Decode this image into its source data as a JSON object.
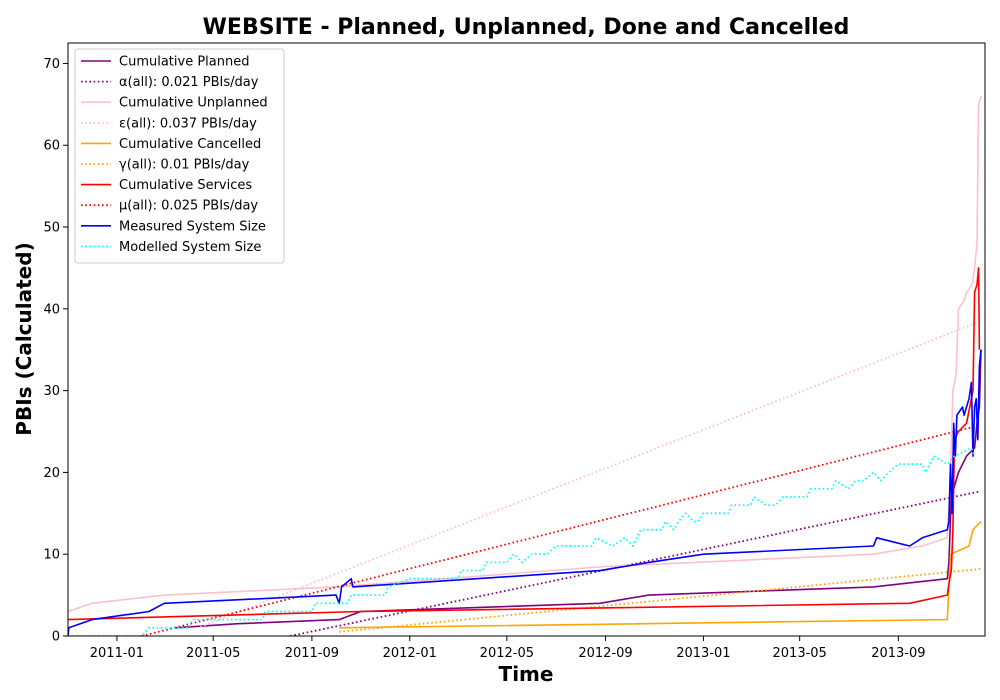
{
  "chart_data": {
    "type": "line",
    "title": "WEBSITE - Planned, Unplanned, Done  and Cancelled",
    "xlabel": "Time",
    "ylabel": "PBIs (Calculated)",
    "xlim": [
      "2010-11-01",
      "2013-12-18"
    ],
    "ylim": [
      0,
      72.5
    ],
    "xticks": [
      "2011-01",
      "2011-05",
      "2011-09",
      "2012-01",
      "2012-05",
      "2012-09",
      "2013-01",
      "2013-05",
      "2013-09"
    ],
    "yticks": [
      0,
      10,
      20,
      30,
      40,
      50,
      60,
      70
    ],
    "grid": false,
    "legend_position": "top-left",
    "series": [
      {
        "name": "Cumulative Planned",
        "color": "#800080",
        "style": "solid",
        "points": [
          [
            "2011-03-15",
            1
          ],
          [
            "2011-06-01",
            1.5
          ],
          [
            "2011-10-05",
            2
          ],
          [
            "2011-11-01",
            3
          ],
          [
            "2012-08-25",
            4
          ],
          [
            "2012-10-25",
            5
          ],
          [
            "2013-08-01",
            6
          ],
          [
            "2013-11-01",
            7
          ],
          [
            "2013-11-03",
            9
          ],
          [
            "2013-11-06",
            17
          ],
          [
            "2013-11-15",
            20
          ],
          [
            "2013-11-25",
            22
          ],
          [
            "2013-12-05",
            23
          ],
          [
            "2013-12-08",
            26
          ],
          [
            "2013-12-11",
            28
          ],
          [
            "2013-12-13",
            35
          ]
        ]
      },
      {
        "name": "α(all): 0.021 PBIs/day",
        "color": "#800080",
        "style": "dotted",
        "points": [
          [
            "2011-08-05",
            0
          ],
          [
            "2013-12-13",
            17.7
          ]
        ]
      },
      {
        "name": "Cumulative Unplanned",
        "color": "#ffc0cb",
        "style": "solid",
        "points": [
          [
            "2010-11-01",
            3
          ],
          [
            "2010-12-01",
            4
          ],
          [
            "2011-03-01",
            5
          ],
          [
            "2011-10-01",
            6
          ],
          [
            "2012-09-01",
            8.5
          ],
          [
            "2013-08-01",
            10
          ],
          [
            "2013-10-01",
            11
          ],
          [
            "2013-11-01",
            12
          ],
          [
            "2013-11-05",
            20
          ],
          [
            "2013-11-08",
            30
          ],
          [
            "2013-11-12",
            32
          ],
          [
            "2013-11-15",
            40
          ],
          [
            "2013-11-22",
            41
          ],
          [
            "2013-11-25",
            42
          ],
          [
            "2013-12-02",
            43
          ],
          [
            "2013-12-05",
            45
          ],
          [
            "2013-12-08",
            48
          ],
          [
            "2013-12-10",
            65
          ],
          [
            "2013-12-13",
            66
          ]
        ]
      },
      {
        "name": "ε(all): 0.037 PBIs/day",
        "color": "#ffc0cb",
        "style": "dotted",
        "points": [
          [
            "2011-04-15",
            1.1
          ],
          [
            "2013-12-13",
            38.5
          ]
        ]
      },
      {
        "name": "Cumulative Cancelled",
        "color": "#ffa500",
        "style": "solid",
        "points": [
          [
            "2011-10-05",
            1
          ],
          [
            "2013-11-01",
            2
          ],
          [
            "2013-11-05",
            10
          ],
          [
            "2013-11-28",
            11
          ],
          [
            "2013-12-03",
            13
          ],
          [
            "2013-12-13",
            14
          ]
        ]
      },
      {
        "name": "γ(all): 0.01 PBIs/day",
        "color": "#ffa500",
        "style": "dotted",
        "points": [
          [
            "2011-10-05",
            0.5
          ],
          [
            "2013-12-13",
            8.2
          ]
        ]
      },
      {
        "name": "Cumulative Services",
        "color": "#ff0000",
        "style": "solid",
        "points": [
          [
            "2010-11-01",
            2
          ],
          [
            "2011-11-01",
            3
          ],
          [
            "2013-09-15",
            4
          ],
          [
            "2013-11-01",
            5
          ],
          [
            "2013-11-04",
            7
          ],
          [
            "2013-11-06",
            8
          ],
          [
            "2013-11-08",
            13
          ],
          [
            "2013-11-10",
            24
          ],
          [
            "2013-11-15",
            25
          ],
          [
            "2013-11-25",
            26
          ],
          [
            "2013-12-03",
            30
          ],
          [
            "2013-12-05",
            42
          ],
          [
            "2013-12-08",
            43
          ],
          [
            "2013-12-10",
            45
          ],
          [
            "2013-12-11",
            35
          ]
        ]
      },
      {
        "name": "μ(all): 0.025 PBIs/day",
        "color": "#ff0000",
        "style": "dotted",
        "points": [
          [
            "2011-02-01",
            0
          ],
          [
            "2013-12-13",
            25.8
          ]
        ]
      },
      {
        "name": "Measured System Size",
        "color": "#0000ff",
        "style": "solid",
        "points": [
          [
            "2010-11-01",
            0
          ],
          [
            "2010-11-02",
            1
          ],
          [
            "2010-12-01",
            2
          ],
          [
            "2011-02-10",
            3
          ],
          [
            "2011-03-01",
            4
          ],
          [
            "2011-10-01",
            5
          ],
          [
            "2011-10-05",
            4
          ],
          [
            "2011-10-08",
            6
          ],
          [
            "2011-10-20",
            7
          ],
          [
            "2011-10-22",
            6
          ],
          [
            "2012-08-25",
            8
          ],
          [
            "2012-10-25",
            9
          ],
          [
            "2013-01-01",
            10
          ],
          [
            "2013-08-01",
            11
          ],
          [
            "2013-08-05",
            12
          ],
          [
            "2013-09-15",
            11
          ],
          [
            "2013-10-01",
            12
          ],
          [
            "2013-11-01",
            13
          ],
          [
            "2013-11-03",
            14
          ],
          [
            "2013-11-05",
            21
          ],
          [
            "2013-11-07",
            15
          ],
          [
            "2013-11-09",
            26
          ],
          [
            "2013-11-11",
            22
          ],
          [
            "2013-11-13",
            27
          ],
          [
            "2013-11-20",
            28
          ],
          [
            "2013-11-22",
            27
          ],
          [
            "2013-11-25",
            28
          ],
          [
            "2013-11-28",
            29
          ],
          [
            "2013-12-01",
            31
          ],
          [
            "2013-12-03",
            22
          ],
          [
            "2013-12-05",
            28
          ],
          [
            "2013-12-07",
            29
          ],
          [
            "2013-12-09",
            24
          ],
          [
            "2013-12-11",
            33
          ],
          [
            "2013-12-13",
            35
          ]
        ]
      },
      {
        "name": "Modelled System Size",
        "color": "#00ffff",
        "style": "dotted",
        "points": [
          [
            "2010-11-01",
            0
          ],
          [
            "2011-02-01",
            0
          ],
          [
            "2011-02-10",
            1
          ],
          [
            "2011-04-01",
            1
          ],
          [
            "2011-04-05",
            2
          ],
          [
            "2011-07-01",
            2
          ],
          [
            "2011-07-05",
            3
          ],
          [
            "2011-09-01",
            3
          ],
          [
            "2011-09-05",
            4
          ],
          [
            "2011-10-15",
            4
          ],
          [
            "2011-10-20",
            5
          ],
          [
            "2011-12-01",
            5
          ],
          [
            "2011-12-05",
            6
          ],
          [
            "2012-01-01",
            7
          ],
          [
            "2012-03-01",
            7
          ],
          [
            "2012-03-05",
            8
          ],
          [
            "2012-04-01",
            8
          ],
          [
            "2012-04-05",
            9
          ],
          [
            "2012-05-01",
            9
          ],
          [
            "2012-05-10",
            10
          ],
          [
            "2012-05-20",
            9
          ],
          [
            "2012-06-01",
            10
          ],
          [
            "2012-06-20",
            10
          ],
          [
            "2012-07-01",
            11
          ],
          [
            "2012-08-15",
            11
          ],
          [
            "2012-08-20",
            12
          ],
          [
            "2012-09-10",
            11
          ],
          [
            "2012-09-25",
            12
          ],
          [
            "2012-10-05",
            11
          ],
          [
            "2012-10-15",
            13
          ],
          [
            "2012-11-10",
            13
          ],
          [
            "2012-11-15",
            14
          ],
          [
            "2012-11-25",
            13
          ],
          [
            "2012-12-01",
            14
          ],
          [
            "2012-12-10",
            15
          ],
          [
            "2012-12-20",
            14
          ],
          [
            "2012-12-25",
            14
          ],
          [
            "2013-01-01",
            15
          ],
          [
            "2013-02-01",
            15
          ],
          [
            "2013-02-05",
            16
          ],
          [
            "2013-03-01",
            16
          ],
          [
            "2013-03-05",
            17
          ],
          [
            "2013-03-20",
            16
          ],
          [
            "2013-04-01",
            16
          ],
          [
            "2013-04-10",
            17
          ],
          [
            "2013-05-10",
            17
          ],
          [
            "2013-05-15",
            18
          ],
          [
            "2013-06-10",
            18
          ],
          [
            "2013-06-15",
            19
          ],
          [
            "2013-07-01",
            18
          ],
          [
            "2013-07-10",
            19
          ],
          [
            "2013-07-20",
            19
          ],
          [
            "2013-08-01",
            20
          ],
          [
            "2013-08-10",
            19
          ],
          [
            "2013-08-20",
            20
          ],
          [
            "2013-09-01",
            21
          ],
          [
            "2013-10-01",
            21
          ],
          [
            "2013-10-05",
            20
          ],
          [
            "2013-10-15",
            22
          ],
          [
            "2013-11-01",
            21
          ],
          [
            "2013-11-10",
            22
          ],
          [
            "2013-12-01",
            23
          ],
          [
            "2013-12-05",
            22
          ]
        ]
      }
    ]
  }
}
